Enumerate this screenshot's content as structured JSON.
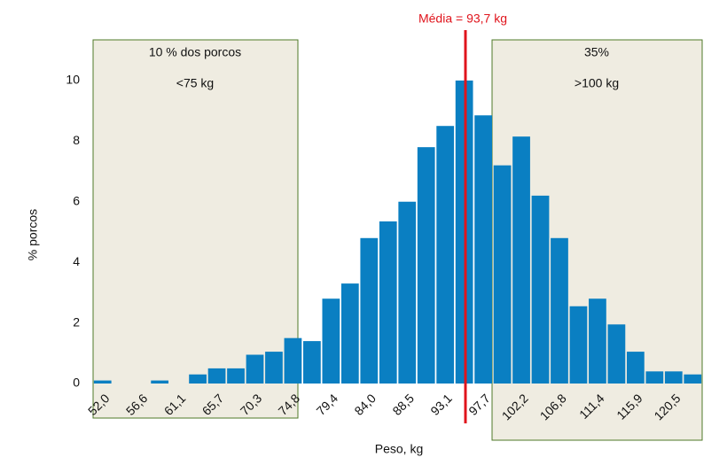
{
  "chart_data": {
    "type": "bar",
    "title": "Média = 93,7 kg",
    "x_label": "Peso, kg",
    "y_label": "% porcos",
    "annotations": [
      "10 % dos porcos",
      "<75 kg",
      "35%",
      ">100 kg"
    ],
    "categories": [
      "52,0",
      null,
      "56,6",
      null,
      "61,1",
      null,
      "65,7",
      null,
      "70,3",
      null,
      "74,8",
      null,
      "79,4",
      null,
      "84,0",
      null,
      "88,5",
      null,
      "93,1",
      null,
      "97,7",
      null,
      "102,2",
      null,
      "106,8",
      null,
      "111,4",
      null,
      "115,9",
      null,
      "120,5",
      null
    ],
    "values": [
      0.1,
      0,
      0,
      0.1,
      0,
      0.3,
      0.5,
      0.5,
      0.95,
      1.05,
      1.5,
      1.4,
      2.8,
      3.3,
      4.8,
      5.35,
      6.0,
      7.8,
      8.5,
      10.0,
      8.85,
      7.2,
      8.15,
      6.2,
      4.8,
      2.55,
      2.8,
      1.95,
      1.05,
      0.4,
      0.4,
      0.3
    ],
    "color": "#0a7fc2",
    "ylim": [
      0,
      11.4
    ],
    "yticks": [
      0,
      2,
      4,
      6,
      8,
      10
    ],
    "grid": false
  }
}
